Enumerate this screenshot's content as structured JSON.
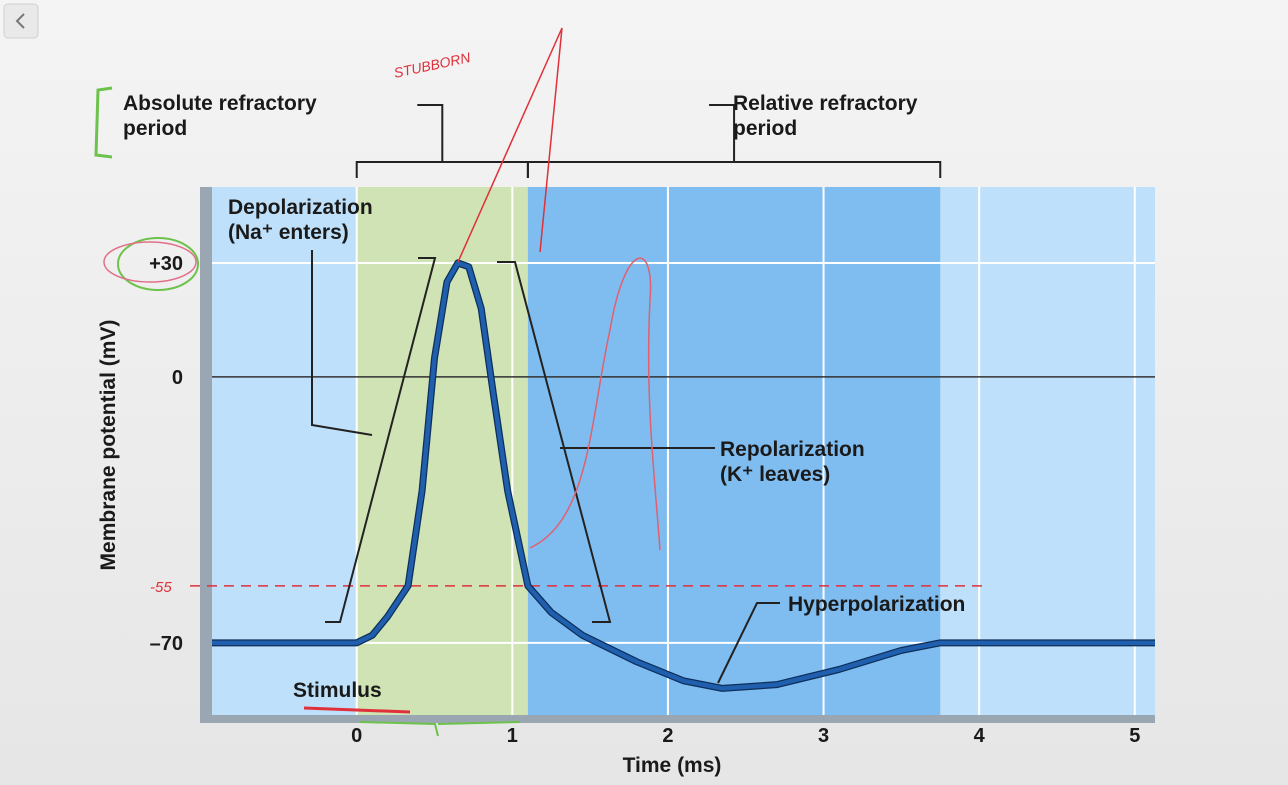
{
  "chart_data": {
    "type": "line",
    "x_label": "Time (ms)",
    "y_label": "Membrane potential (mV)",
    "xlim": [
      -0.93,
      5.13
    ],
    "ylim": [
      -89,
      50
    ],
    "xticks": [
      0,
      1,
      2,
      3,
      4,
      5
    ],
    "yticks": [
      {
        "value": -70,
        "label": "–70"
      },
      0,
      {
        "value": 30,
        "label": "+30"
      }
    ],
    "grid": true,
    "series": [
      {
        "name": "Membrane potential",
        "color": "#1f5fae",
        "x": [
          -0.93,
          0,
          0.1,
          0.2,
          0.33,
          0.42,
          0.5,
          0.58,
          0.65,
          0.72,
          0.8,
          0.88,
          0.97,
          1.1,
          1.25,
          1.45,
          1.8,
          2.1,
          2.35,
          2.7,
          3.1,
          3.5,
          3.75,
          5.13
        ],
        "values": [
          -70,
          -70,
          -68,
          -63,
          -55,
          -30,
          5,
          25,
          30,
          29,
          18,
          -5,
          -30,
          -55,
          -62,
          -68,
          -75,
          -80,
          -82,
          -81,
          -77,
          -72,
          -70,
          -70
        ]
      }
    ],
    "threshold": {
      "value": -55,
      "label": "-55",
      "color": "#e0303a"
    },
    "regions": [
      {
        "label": "Absolute refractory\nperiod",
        "start": 0,
        "end": 1.1,
        "color": "#cfe3b4"
      },
      {
        "label": "Relative refractory\nperiod",
        "start": 1.1,
        "end": 3.75,
        "color": "#7fbdf0"
      }
    ],
    "annotations": [
      {
        "text": "Depolarization\n(Na⁺ enters)"
      },
      {
        "text": "Repolarization\n(K⁺ leaves)"
      },
      {
        "text": "Hyperpolarization"
      },
      {
        "text": "Stimulus"
      },
      {
        "text": "STUBBORN"
      }
    ]
  }
}
